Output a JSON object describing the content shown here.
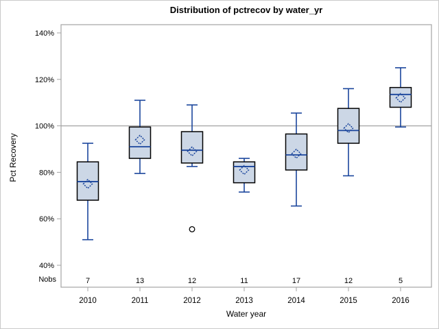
{
  "figure": {
    "background": "#ffffff",
    "border_color": "#c9c9c9"
  },
  "chart_data": {
    "type": "boxplot",
    "title": "Distribution of pctrecov by water_yr",
    "xlabel": "Water year",
    "ylabel": "Pct Recovery",
    "nobs_label": "Nobs",
    "categories": [
      "2010",
      "2011",
      "2012",
      "2013",
      "2014",
      "2015",
      "2016"
    ],
    "nobs": [
      7,
      13,
      12,
      11,
      17,
      12,
      5
    ],
    "yticks": [
      40,
      60,
      80,
      100,
      120,
      140
    ],
    "ytick_labels": [
      "40%",
      "60%",
      "80%",
      "100%",
      "120%",
      "140%"
    ],
    "ylim": [
      31,
      143.5
    ],
    "refline": 100,
    "grid": false,
    "legend": "none",
    "series": [
      {
        "category": "2010",
        "low": 51,
        "q1": 68,
        "median": 76,
        "mean": 75,
        "q3": 84.5,
        "high": 92.5,
        "outliers": []
      },
      {
        "category": "2011",
        "low": 79.5,
        "q1": 86,
        "median": 91,
        "mean": 94,
        "q3": 99.5,
        "high": 111,
        "outliers": []
      },
      {
        "category": "2012",
        "low": 82.5,
        "q1": 84,
        "median": 89.5,
        "mean": 89,
        "q3": 97.5,
        "high": 109,
        "outliers": [
          55.5
        ]
      },
      {
        "category": "2013",
        "low": 71.5,
        "q1": 75.5,
        "median": 82.5,
        "mean": 81,
        "q3": 84.5,
        "high": 86,
        "outliers": []
      },
      {
        "category": "2014",
        "low": 65.5,
        "q1": 81,
        "median": 87.5,
        "mean": 88,
        "q3": 96.5,
        "high": 105.5,
        "outliers": []
      },
      {
        "category": "2015",
        "low": 78.5,
        "q1": 92.5,
        "median": 98,
        "mean": 99,
        "q3": 107.5,
        "high": 116,
        "outliers": []
      },
      {
        "category": "2016",
        "low": 99.5,
        "q1": 108,
        "median": 113.5,
        "mean": 112,
        "q3": 116.5,
        "high": 125,
        "outliers": []
      }
    ],
    "colors": {
      "box_fill": "#ccd7e6",
      "box_border": "#000000",
      "line": "#1a459c",
      "frame": "#a3a3a3",
      "refline": "#a3a3a3",
      "outlier": "#000000",
      "text": "#000000"
    }
  }
}
